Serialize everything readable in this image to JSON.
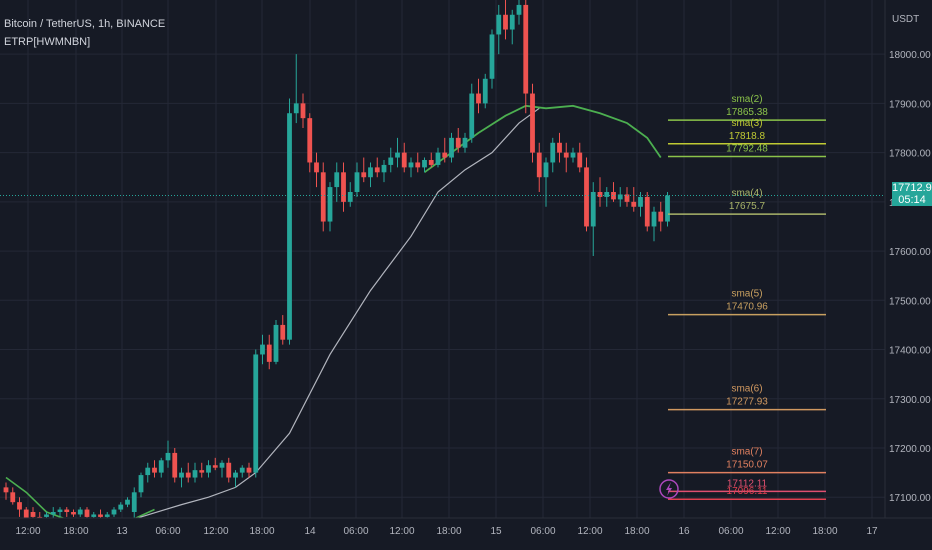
{
  "header": {
    "symbol_line": "Bitcoin / TetherUS, 1h, BINANCE",
    "indicator_line": "ETRP[HWMNBN]"
  },
  "axis": {
    "currency": "USDT",
    "price_ticks": [
      "18000.00",
      "17900.00",
      "17800.00",
      "17700.00",
      "17600.00",
      "17500.00",
      "17400.00",
      "17300.00",
      "17200.00",
      "17100.00"
    ],
    "time_ticks": [
      "12:00",
      "18:00",
      "13",
      "06:00",
      "12:00",
      "18:00",
      "14",
      "06:00",
      "12:00",
      "18:00",
      "15",
      "06:00",
      "12:00",
      "18:00",
      "16",
      "06:00",
      "12:00",
      "18:00",
      "17"
    ]
  },
  "current_price": {
    "value": "17712.93",
    "countdown": "05:14"
  },
  "colors": {
    "up": "#26a69a",
    "down": "#ef5350",
    "background": "#161a25",
    "grid": "#242836",
    "text": "#b2b5be",
    "ma": "#4caf50",
    "gray_ma": "#b2b5be"
  },
  "chart_data": {
    "type": "candlestick",
    "timeframe": "1h",
    "ylim": [
      17060,
      18100
    ],
    "candles": [
      {
        "o": 17120,
        "h": 17130,
        "l": 17095,
        "c": 17110
      },
      {
        "o": 17110,
        "h": 17120,
        "l": 17085,
        "c": 17090
      },
      {
        "o": 17090,
        "h": 17100,
        "l": 17060,
        "c": 17075
      },
      {
        "o": 17075,
        "h": 17080,
        "l": 17040,
        "c": 17050
      },
      {
        "o": 17070,
        "h": 17080,
        "l": 17040,
        "c": 17060
      },
      {
        "o": 17060,
        "h": 17070,
        "l": 17030,
        "c": 17050
      },
      {
        "o": 17060,
        "h": 17070,
        "l": 17040,
        "c": 17065
      },
      {
        "o": 17065,
        "h": 17080,
        "l": 17050,
        "c": 17070
      },
      {
        "o": 17070,
        "h": 17080,
        "l": 17060,
        "c": 17075
      },
      {
        "o": 17075,
        "h": 17080,
        "l": 17060,
        "c": 17070
      },
      {
        "o": 17070,
        "h": 17075,
        "l": 17060,
        "c": 17065
      },
      {
        "o": 17065,
        "h": 17080,
        "l": 17060,
        "c": 17075
      },
      {
        "o": 17075,
        "h": 17080,
        "l": 17055,
        "c": 17060
      },
      {
        "o": 17060,
        "h": 17070,
        "l": 17050,
        "c": 17065
      },
      {
        "o": 17065,
        "h": 17075,
        "l": 17055,
        "c": 17060
      },
      {
        "o": 17060,
        "h": 17070,
        "l": 17050,
        "c": 17065
      },
      {
        "o": 17065,
        "h": 17080,
        "l": 17060,
        "c": 17075
      },
      {
        "o": 17075,
        "h": 17090,
        "l": 17070,
        "c": 17085
      },
      {
        "o": 17085,
        "h": 17100,
        "l": 17080,
        "c": 17095
      },
      {
        "o": 17070,
        "h": 17120,
        "l": 17050,
        "c": 17110
      },
      {
        "o": 17110,
        "h": 17150,
        "l": 17100,
        "c": 17145
      },
      {
        "o": 17145,
        "h": 17170,
        "l": 17130,
        "c": 17160
      },
      {
        "o": 17160,
        "h": 17175,
        "l": 17140,
        "c": 17150
      },
      {
        "o": 17150,
        "h": 17180,
        "l": 17140,
        "c": 17175
      },
      {
        "o": 17175,
        "h": 17215,
        "l": 17160,
        "c": 17190
      },
      {
        "o": 17190,
        "h": 17200,
        "l": 17130,
        "c": 17140
      },
      {
        "o": 17140,
        "h": 17160,
        "l": 17120,
        "c": 17150
      },
      {
        "o": 17150,
        "h": 17170,
        "l": 17130,
        "c": 17140
      },
      {
        "o": 17140,
        "h": 17170,
        "l": 17130,
        "c": 17155
      },
      {
        "o": 17155,
        "h": 17170,
        "l": 17140,
        "c": 17150
      },
      {
        "o": 17150,
        "h": 17175,
        "l": 17140,
        "c": 17165
      },
      {
        "o": 17165,
        "h": 17180,
        "l": 17155,
        "c": 17160
      },
      {
        "o": 17160,
        "h": 17175,
        "l": 17140,
        "c": 17170
      },
      {
        "o": 17170,
        "h": 17180,
        "l": 17130,
        "c": 17140
      },
      {
        "o": 17140,
        "h": 17155,
        "l": 17120,
        "c": 17150
      },
      {
        "o": 17150,
        "h": 17165,
        "l": 17140,
        "c": 17160
      },
      {
        "o": 17160,
        "h": 17170,
        "l": 17140,
        "c": 17150
      },
      {
        "o": 17150,
        "h": 17400,
        "l": 17140,
        "c": 17390
      },
      {
        "o": 17390,
        "h": 17430,
        "l": 17370,
        "c": 17410
      },
      {
        "o": 17410,
        "h": 17430,
        "l": 17360,
        "c": 17375
      },
      {
        "o": 17375,
        "h": 17460,
        "l": 17370,
        "c": 17450
      },
      {
        "o": 17450,
        "h": 17470,
        "l": 17410,
        "c": 17420
      },
      {
        "o": 17420,
        "h": 17910,
        "l": 17410,
        "c": 17880
      },
      {
        "o": 17880,
        "h": 18000,
        "l": 17860,
        "c": 17900
      },
      {
        "o": 17900,
        "h": 17920,
        "l": 17850,
        "c": 17870
      },
      {
        "o": 17870,
        "h": 17880,
        "l": 17760,
        "c": 17780
      },
      {
        "o": 17780,
        "h": 17800,
        "l": 17730,
        "c": 17760
      },
      {
        "o": 17760,
        "h": 17780,
        "l": 17640,
        "c": 17660
      },
      {
        "o": 17660,
        "h": 17740,
        "l": 17640,
        "c": 17730
      },
      {
        "o": 17730,
        "h": 17780,
        "l": 17700,
        "c": 17760
      },
      {
        "o": 17760,
        "h": 17780,
        "l": 17680,
        "c": 17700
      },
      {
        "o": 17700,
        "h": 17740,
        "l": 17690,
        "c": 17720
      },
      {
        "o": 17720,
        "h": 17780,
        "l": 17710,
        "c": 17760
      },
      {
        "o": 17760,
        "h": 17790,
        "l": 17740,
        "c": 17750
      },
      {
        "o": 17750,
        "h": 17780,
        "l": 17730,
        "c": 17770
      },
      {
        "o": 17770,
        "h": 17790,
        "l": 17750,
        "c": 17760
      },
      {
        "o": 17760,
        "h": 17785,
        "l": 17740,
        "c": 17775
      },
      {
        "o": 17775,
        "h": 17810,
        "l": 17760,
        "c": 17790
      },
      {
        "o": 17790,
        "h": 17830,
        "l": 17770,
        "c": 17800
      },
      {
        "o": 17800,
        "h": 17820,
        "l": 17760,
        "c": 17770
      },
      {
        "o": 17770,
        "h": 17790,
        "l": 17750,
        "c": 17780
      },
      {
        "o": 17780,
        "h": 17800,
        "l": 17760,
        "c": 17770
      },
      {
        "o": 17770,
        "h": 17790,
        "l": 17760,
        "c": 17785
      },
      {
        "o": 17785,
        "h": 17800,
        "l": 17770,
        "c": 17775
      },
      {
        "o": 17775,
        "h": 17810,
        "l": 17770,
        "c": 17800
      },
      {
        "o": 17800,
        "h": 17830,
        "l": 17780,
        "c": 17790
      },
      {
        "o": 17790,
        "h": 17840,
        "l": 17780,
        "c": 17830
      },
      {
        "o": 17830,
        "h": 17850,
        "l": 17800,
        "c": 17810
      },
      {
        "o": 17810,
        "h": 17840,
        "l": 17800,
        "c": 17830
      },
      {
        "o": 17830,
        "h": 17940,
        "l": 17820,
        "c": 17920
      },
      {
        "o": 17920,
        "h": 17950,
        "l": 17880,
        "c": 17900
      },
      {
        "o": 17900,
        "h": 17960,
        "l": 17890,
        "c": 17950
      },
      {
        "o": 17950,
        "h": 18050,
        "l": 17930,
        "c": 18040
      },
      {
        "o": 18040,
        "h": 18100,
        "l": 18000,
        "c": 18080
      },
      {
        "o": 18080,
        "h": 18110,
        "l": 18030,
        "c": 18050
      },
      {
        "o": 18050,
        "h": 18090,
        "l": 18020,
        "c": 18080
      },
      {
        "o": 18080,
        "h": 18120,
        "l": 18060,
        "c": 18100
      },
      {
        "o": 18100,
        "h": 18120,
        "l": 17880,
        "c": 17920
      },
      {
        "o": 17920,
        "h": 17940,
        "l": 17780,
        "c": 17800
      },
      {
        "o": 17800,
        "h": 17820,
        "l": 17720,
        "c": 17750
      },
      {
        "o": 17750,
        "h": 17790,
        "l": 17690,
        "c": 17780
      },
      {
        "o": 17780,
        "h": 17830,
        "l": 17760,
        "c": 17820
      },
      {
        "o": 17820,
        "h": 17840,
        "l": 17780,
        "c": 17800
      },
      {
        "o": 17800,
        "h": 17820,
        "l": 17760,
        "c": 17790
      },
      {
        "o": 17790,
        "h": 17810,
        "l": 17780,
        "c": 17800
      },
      {
        "o": 17800,
        "h": 17820,
        "l": 17760,
        "c": 17770
      },
      {
        "o": 17770,
        "h": 17790,
        "l": 17640,
        "c": 17650
      },
      {
        "o": 17650,
        "h": 17740,
        "l": 17590,
        "c": 17720
      },
      {
        "o": 17720,
        "h": 17750,
        "l": 17690,
        "c": 17710
      },
      {
        "o": 17710,
        "h": 17730,
        "l": 17690,
        "c": 17720
      },
      {
        "o": 17720,
        "h": 17740,
        "l": 17700,
        "c": 17705
      },
      {
        "o": 17705,
        "h": 17730,
        "l": 17690,
        "c": 17715
      },
      {
        "o": 17715,
        "h": 17730,
        "l": 17690,
        "c": 17700
      },
      {
        "o": 17700,
        "h": 17730,
        "l": 17680,
        "c": 17690
      },
      {
        "o": 17690,
        "h": 17720,
        "l": 17670,
        "c": 17710
      },
      {
        "o": 17710,
        "h": 17720,
        "l": 17640,
        "c": 17650
      },
      {
        "o": 17650,
        "h": 17690,
        "l": 17620,
        "c": 17680
      },
      {
        "o": 17680,
        "h": 17700,
        "l": 17640,
        "c": 17660
      },
      {
        "o": 17660,
        "h": 17720,
        "l": 17650,
        "c": 17712.93
      }
    ],
    "sma_line": [
      {
        "i": 0,
        "v": 17140
      },
      {
        "i": 3,
        "v": 17110
      },
      {
        "i": 6,
        "v": 17070
      },
      {
        "i": 10,
        "v": 17050
      },
      {
        "i": 14,
        "v": 17040
      },
      {
        "i": 18,
        "v": 17050
      },
      {
        "i": 22,
        "v": 17075
      }
    ],
    "gray_ma": [
      {
        "i": 4,
        "v": 17010
      },
      {
        "i": 14,
        "v": 17020
      },
      {
        "i": 20,
        "v": 17060
      },
      {
        "i": 26,
        "v": 17085
      },
      {
        "i": 30,
        "v": 17100
      },
      {
        "i": 34,
        "v": 17120
      },
      {
        "i": 37,
        "v": 17150
      },
      {
        "i": 42,
        "v": 17230
      },
      {
        "i": 48,
        "v": 17390
      },
      {
        "i": 54,
        "v": 17520
      },
      {
        "i": 60,
        "v": 17630
      },
      {
        "i": 64,
        "v": 17720
      },
      {
        "i": 68,
        "v": 17765
      },
      {
        "i": 72,
        "v": 17800
      },
      {
        "i": 76,
        "v": 17860
      },
      {
        "i": 79,
        "v": 17890
      }
    ],
    "green_ma": [
      {
        "i": 62,
        "v": 17760
      },
      {
        "i": 66,
        "v": 17800
      },
      {
        "i": 70,
        "v": 17840
      },
      {
        "i": 74,
        "v": 17875
      },
      {
        "i": 77,
        "v": 17895
      },
      {
        "i": 80,
        "v": 17890
      },
      {
        "i": 84,
        "v": 17895
      },
      {
        "i": 88,
        "v": 17880
      },
      {
        "i": 92,
        "v": 17860
      },
      {
        "i": 95,
        "v": 17830
      },
      {
        "i": 97,
        "v": 17790
      }
    ],
    "levels": [
      {
        "label": "sma(2)",
        "value": "17865.38",
        "price": 17866,
        "color": "#8bc34a"
      },
      {
        "label": "sma(3)",
        "value": "17818.8",
        "price": 17818,
        "color": "#c0ca33"
      },
      {
        "label": "",
        "value": "17792.48",
        "price": 17792,
        "color": "#8bc34a"
      },
      {
        "label": "sma(4)",
        "value": "17675.7",
        "price": 17675,
        "color": "#aab56a"
      },
      {
        "label": "sma(5)",
        "value": "17470.96",
        "price": 17471,
        "color": "#c8a060"
      },
      {
        "label": "sma(6)",
        "value": "17277.93",
        "price": 17278,
        "color": "#d09860"
      },
      {
        "label": "sma(7)",
        "value": "17150.07",
        "price": 17150,
        "color": "#e08060"
      },
      {
        "label": "",
        "value": "17112.11",
        "price": 17112,
        "color": "#e05070"
      },
      {
        "label": "",
        "value": "17096.11",
        "price": 17096,
        "color": "#e04050"
      }
    ]
  }
}
